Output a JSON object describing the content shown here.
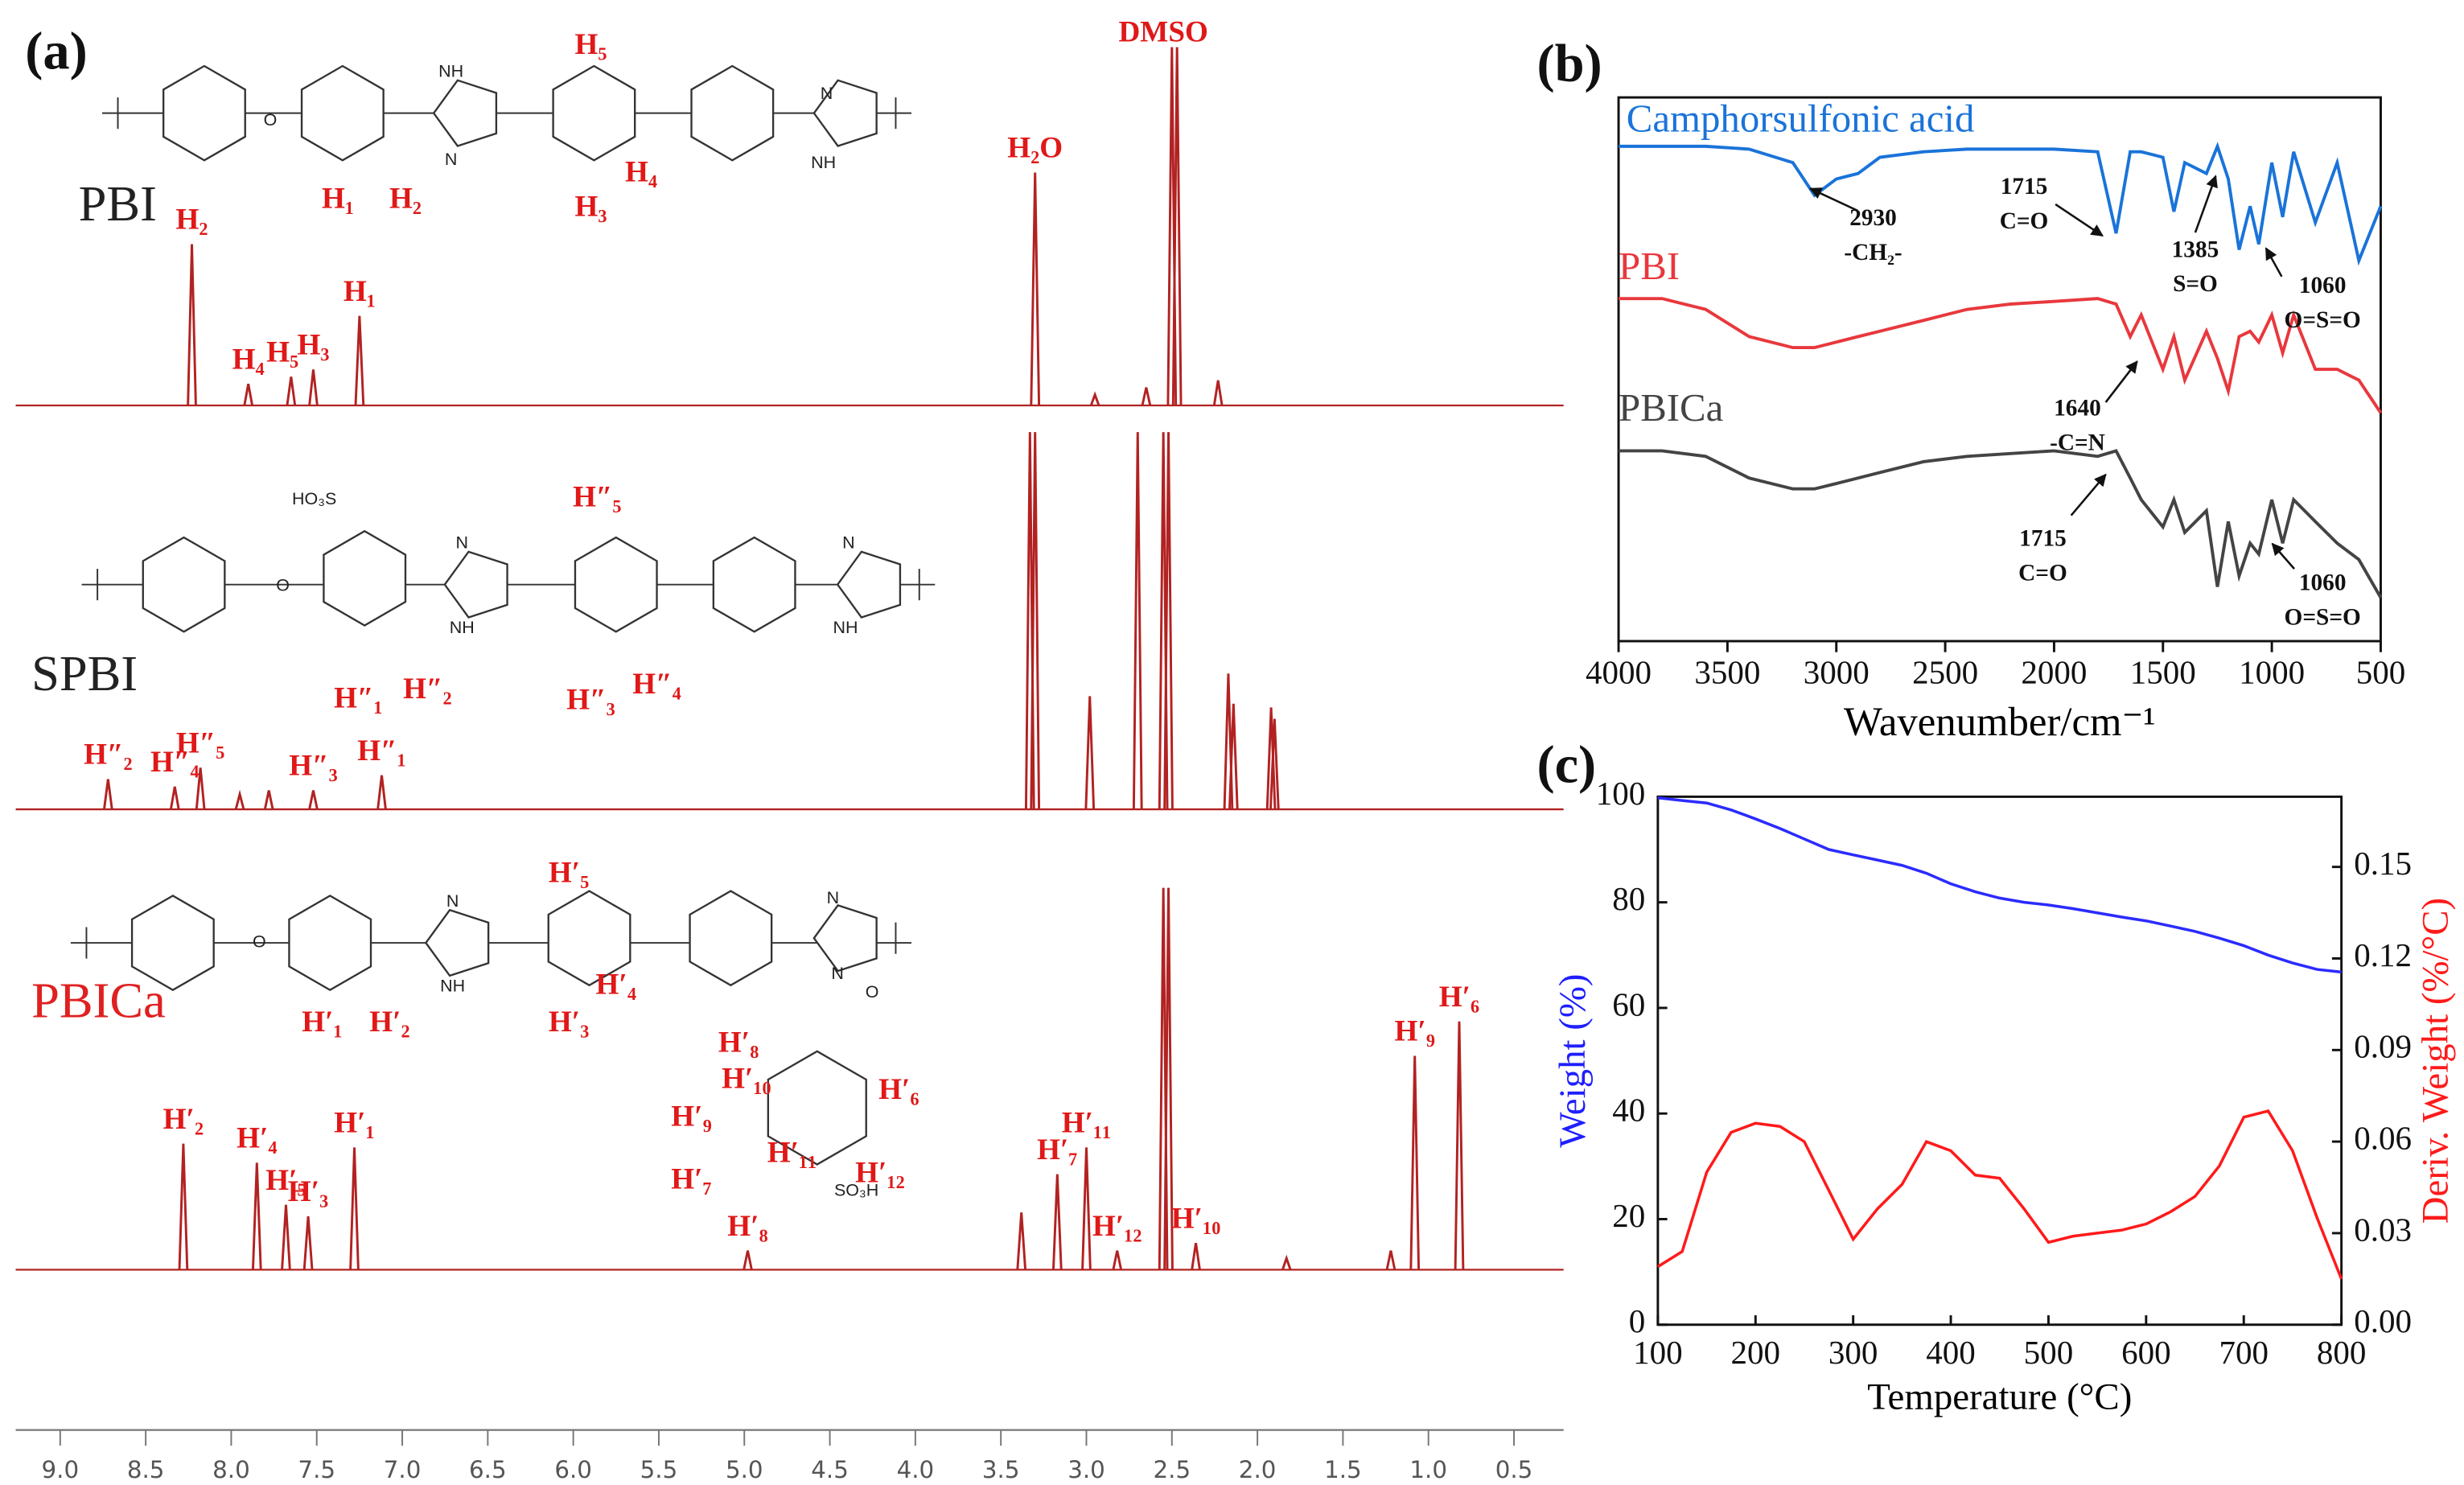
{
  "chart_data": [
    {
      "type": "nmr",
      "panel_label": "(a)",
      "xlim": [
        9.26,
        0.21
      ],
      "xticks": [
        {
          "value": 9,
          "label": "9.0"
        },
        8.5,
        {
          "value": 8,
          "label": "8.0"
        },
        7.5,
        {
          "value": 7,
          "label": "7.0"
        },
        6.5,
        {
          "value": 6,
          "label": "6.0"
        },
        5.5,
        {
          "value": 5,
          "label": "5.0"
        },
        4.5,
        {
          "value": 4,
          "label": "4.0"
        },
        3.5,
        {
          "value": 3,
          "label": "3.0"
        },
        2.5,
        {
          "value": 2,
          "label": "2.0"
        },
        1.5,
        {
          "value": 1,
          "label": "1.0"
        },
        0.5
      ],
      "series": [
        {
          "name": "PBI",
          "color": "#b22222",
          "name_color": "#222222",
          "x": [
            8.23,
            7.9,
            7.65,
            7.52,
            7.25,
            3.3,
            2.95,
            2.65,
            2.5,
            2.47,
            2.23
          ],
          "values": [
            45,
            6,
            8,
            10,
            25,
            65,
            3,
            5,
            100,
            100,
            7
          ],
          "annotations": [
            {
              "text": "H₂",
              "x": 8.23
            },
            {
              "text": "H₄",
              "x": 7.9
            },
            {
              "text": "H₅",
              "x": 7.7
            },
            {
              "text": "H₃",
              "x": 7.52
            },
            {
              "text": "H₁",
              "x": 7.25
            },
            {
              "text": "H₂O",
              "x": 3.3
            },
            {
              "text": "DMSO",
              "x": 2.55
            }
          ],
          "atoms": [
            "O",
            "NH",
            "N",
            "N",
            "NH"
          ],
          "labels": [
            "H₅",
            "H₁",
            "H₂",
            "H₃",
            "H₄"
          ]
        },
        {
          "name": "SPBI",
          "color": "#b22222",
          "name_color": "#222222",
          "x": [
            8.72,
            8.33,
            8.18,
            7.95,
            7.78,
            7.52,
            7.12,
            3.33,
            3.3,
            2.98,
            2.7,
            2.55,
            2.52,
            2.17,
            2.14,
            1.92,
            1.9
          ],
          "values": [
            8,
            6,
            11,
            4,
            5,
            5,
            9,
            100,
            100,
            30,
            100,
            100,
            100,
            36,
            28,
            27,
            24
          ],
          "annotations": [
            {
              "text": "H″₂",
              "x": 8.72
            },
            {
              "text": "H″₄",
              "x": 8.33
            },
            {
              "text": "H″₅",
              "x": 8.18
            },
            {
              "text": "H″₃",
              "x": 7.52
            },
            {
              "text": "H″₁",
              "x": 7.12
            }
          ],
          "atoms": [
            "HO₃S",
            "O",
            "N",
            "NH",
            "N",
            "NH"
          ],
          "labels": [
            "H″₅",
            "H″₁",
            "H″₂",
            "H″₃",
            "H″₄"
          ]
        },
        {
          "name": "PBICa",
          "color": "#b22222",
          "name_color": "#e02020",
          "x": [
            8.28,
            7.85,
            7.68,
            7.55,
            7.28,
            4.98,
            3.38,
            3.17,
            3.0,
            2.82,
            2.55,
            2.52,
            2.36,
            1.83,
            1.22,
            1.08,
            0.82
          ],
          "values": [
            33,
            28,
            17,
            14,
            32,
            5,
            15,
            25,
            32,
            5,
            100,
            100,
            7,
            3,
            5,
            56,
            65
          ],
          "annotations": [
            {
              "text": "H′₂",
              "x": 8.28
            },
            {
              "text": "H′₄",
              "x": 7.85
            },
            {
              "text": "H′₅",
              "x": 7.68
            },
            {
              "text": "H′₃",
              "x": 7.55
            },
            {
              "text": "H′₁",
              "x": 7.28
            },
            {
              "text": "H′₈",
              "x": 4.98
            },
            {
              "text": "H′₇",
              "x": 3.17
            },
            {
              "text": "H′₁₁",
              "x": 3.0
            },
            {
              "text": "H′₁₂",
              "x": 2.82
            },
            {
              "text": "H′₁₀",
              "x": 2.36
            },
            {
              "text": "H′₉",
              "x": 1.08
            },
            {
              "text": "H′₆",
              "x": 0.82
            }
          ],
          "atoms": [
            "O",
            "N",
            "NH",
            "N",
            "N",
            "O",
            "SO₃H"
          ],
          "labels": [
            "H′₅",
            "H′₄",
            "H′₃",
            "H′₁",
            "H′₂",
            "H′₈",
            "H′₁₀",
            "H′₉",
            "H′₆",
            "H′₁₁",
            "H′₁₂",
            "H′₇"
          ]
        }
      ]
    },
    {
      "type": "line",
      "panel_label": "(b)",
      "x_label": "Wavenumber/cm⁻¹",
      "xlim": [
        4000,
        500
      ],
      "xticks": [
        4000,
        3500,
        3000,
        2500,
        2000,
        1500,
        1000,
        500
      ],
      "ylim": [
        0,
        100
      ],
      "x": [
        4000,
        3800,
        3600,
        3400,
        3200,
        3100,
        3000,
        2900,
        2800,
        2600,
        2400,
        2200,
        2000,
        1800,
        1715,
        1650,
        1600,
        1500,
        1450,
        1400,
        1300,
        1250,
        1200,
        1150,
        1100,
        1060,
        1000,
        950,
        900,
        800,
        700,
        600,
        500
      ],
      "series": [
        {
          "name": "Camphorsulfonic acid",
          "color": "#1a73d9",
          "values": [
            91,
            91,
            91,
            90.5,
            88,
            82,
            85,
            86,
            89,
            90,
            90.5,
            90.5,
            90.5,
            90,
            75,
            90,
            90,
            89,
            79,
            88,
            86,
            91,
            85,
            72,
            80,
            73,
            88,
            78,
            90,
            77,
            88,
            70,
            80
          ]
        },
        {
          "name": "PBI",
          "color": "#e8383d",
          "values": [
            63,
            63,
            61,
            56,
            54,
            54,
            55,
            56,
            57,
            59,
            61,
            62,
            62.5,
            63,
            62,
            56,
            60,
            50,
            56,
            48,
            57,
            52,
            46,
            56,
            57,
            55,
            60,
            53,
            60,
            50,
            50,
            48,
            42
          ]
        },
        {
          "name": "PBICa",
          "color": "#444444",
          "values": [
            35,
            35,
            34,
            30,
            28,
            28,
            29,
            30,
            31,
            33,
            34,
            34.5,
            35,
            34,
            35,
            30,
            26,
            21,
            26,
            20,
            24,
            10,
            22,
            12,
            18,
            16,
            26,
            18,
            26,
            22,
            18,
            15,
            8
          ]
        }
      ],
      "annotations": [
        [
          "2930",
          "-CH₂-"
        ],
        [
          "1715",
          "C=O"
        ],
        [
          "1385",
          "S=O"
        ],
        [
          "1060",
          "O=S=O"
        ],
        [
          "1640",
          "-C=N"
        ],
        [
          "1715",
          "C=O"
        ],
        [
          "1060",
          "O=S=O"
        ]
      ]
    },
    {
      "type": "line",
      "panel_label": "(c)",
      "x_label": "Temperature (°C)",
      "y_label": "Weight (%)",
      "y2_label": "Deriv. Weight (%/°C)",
      "xlim": [
        100,
        800
      ],
      "xticks": [
        100,
        200,
        300,
        400,
        500,
        600,
        700,
        800
      ],
      "ylim": [
        0,
        100
      ],
      "yticks": [
        0,
        20,
        40,
        60,
        80,
        100
      ],
      "y_color": "#1f1fff",
      "y2lim": [
        0,
        0.173
      ],
      "y2ticks": [
        {
          "value": 0,
          "label": "0.00"
        },
        0.03,
        0.06,
        0.09,
        0.12,
        0.15
      ],
      "y2_color": "#ff1a1a",
      "x": [
        100,
        125,
        150,
        175,
        200,
        225,
        250,
        275,
        300,
        325,
        350,
        375,
        400,
        425,
        450,
        475,
        500,
        525,
        550,
        575,
        600,
        625,
        650,
        675,
        700,
        725,
        750,
        775,
        800
      ],
      "series": [
        {
          "name": "Weight",
          "color": "#2b2bff",
          "values": [
            99.8,
            99.3,
            98.8,
            97.5,
            95.8,
            94,
            92,
            90,
            89,
            88,
            87,
            85.5,
            83.5,
            82,
            80.8,
            80,
            79.5,
            78.8,
            78,
            77.2,
            76.5,
            75.5,
            74.5,
            73.2,
            71.8,
            70,
            68.5,
            67.3,
            66.8
          ]
        },
        {
          "name": "Deriv. Weight",
          "color": "#ff1a1a",
          "axis": "y2",
          "values": [
            0.019,
            0.024,
            0.05,
            0.063,
            0.066,
            0.065,
            0.06,
            0.044,
            0.028,
            0.038,
            0.046,
            0.06,
            0.057,
            0.049,
            0.048,
            0.038,
            0.027,
            0.029,
            0.03,
            0.031,
            0.033,
            0.037,
            0.042,
            0.052,
            0.068,
            0.07,
            0.057,
            0.035,
            0.015
          ]
        }
      ]
    }
  ]
}
